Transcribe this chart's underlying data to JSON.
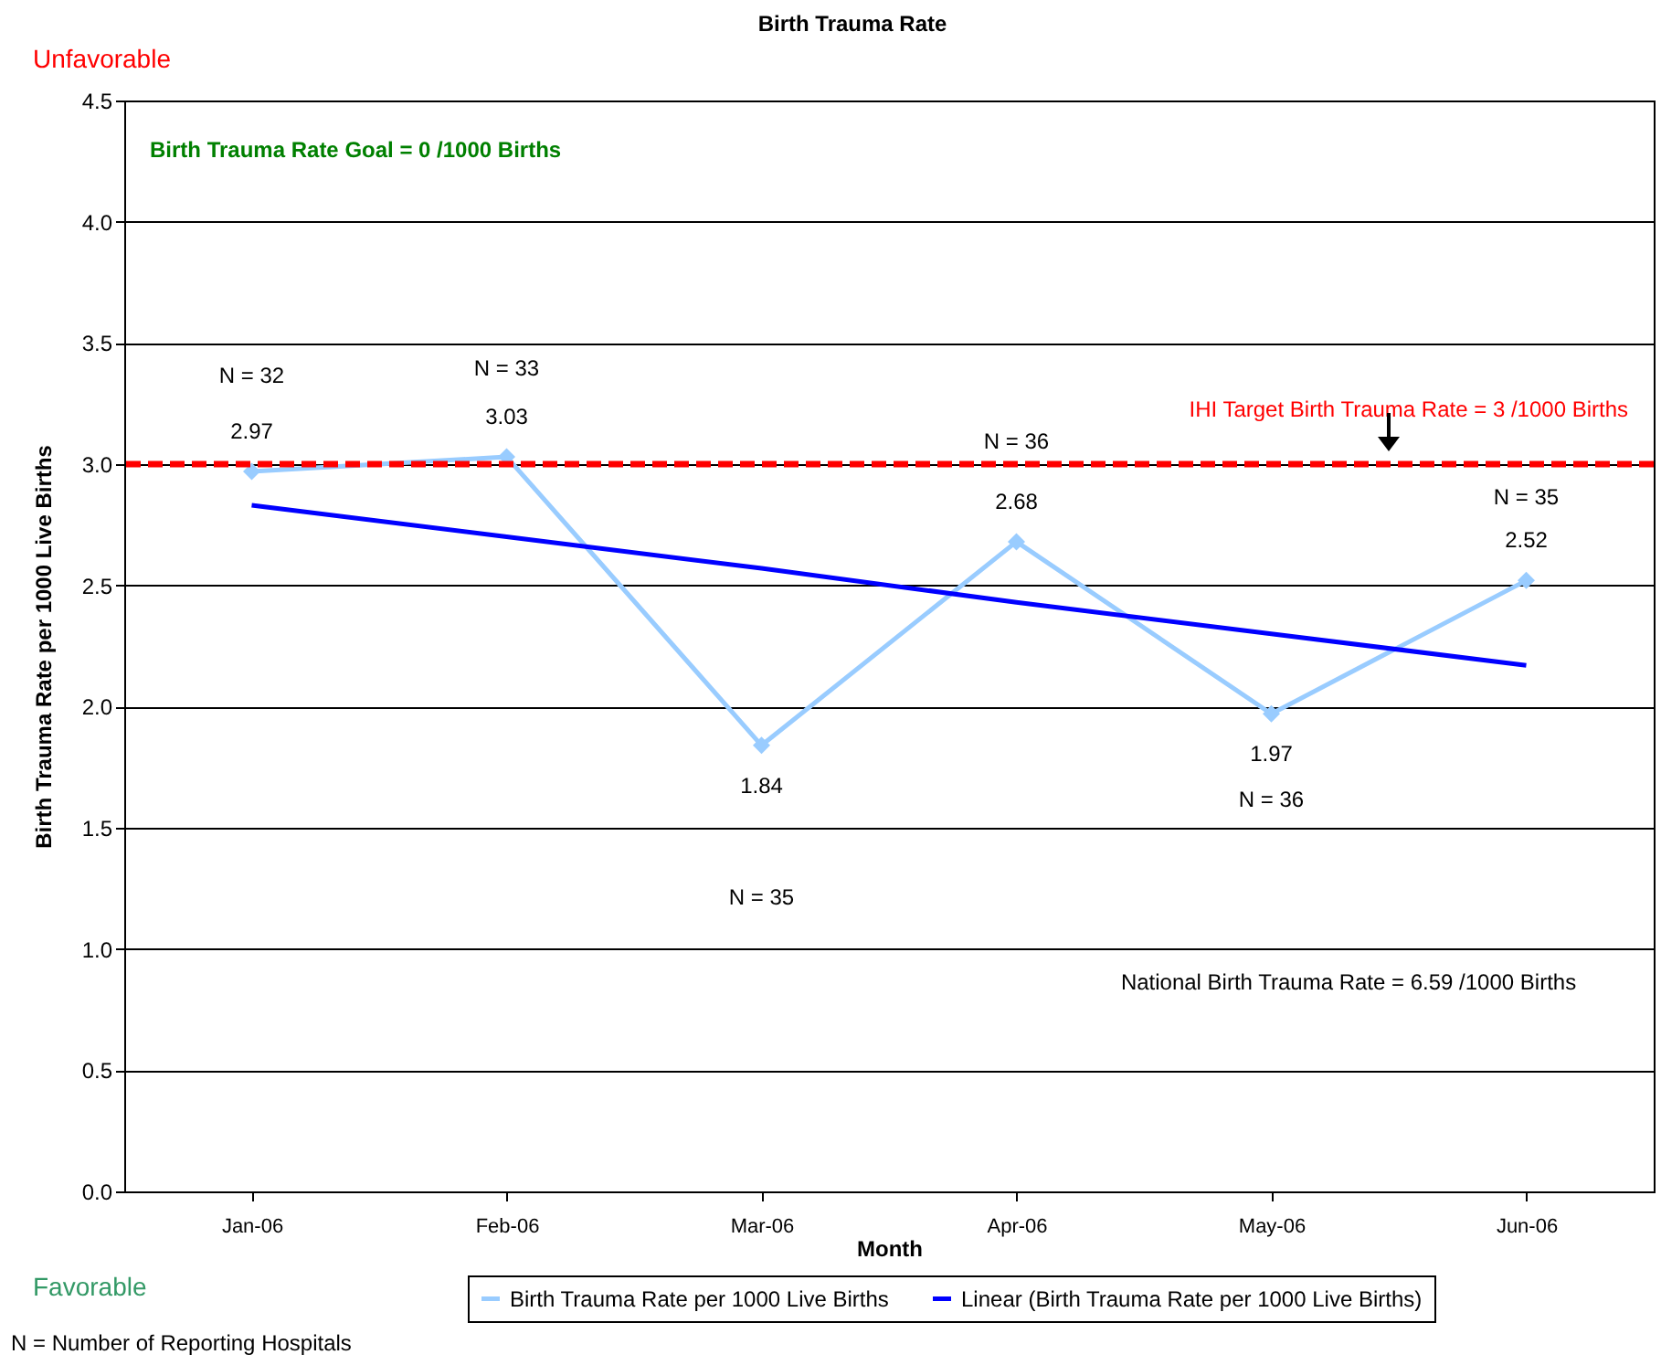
{
  "chart_data": {
    "type": "line",
    "title": "Birth Trauma Rate",
    "xlabel": "Month",
    "ylabel": "Birth Trauma Rate per 1000 Live Births",
    "categories": [
      "Jan-06",
      "Feb-06",
      "Mar-06",
      "Apr-06",
      "May-06",
      "Jun-06"
    ],
    "series": [
      {
        "name": "Birth Trauma Rate per 1000 Live Births",
        "color": "#99ccff",
        "values": [
          2.97,
          3.03,
          1.84,
          2.68,
          1.97,
          2.52
        ],
        "marker": "diamond",
        "value_labels": [
          "2.97",
          "3.03",
          "1.84",
          "2.68",
          "1.97",
          "2.52"
        ]
      },
      {
        "name": "Linear (Birth Trauma Rate per 1000 Live Births)",
        "color": "#0000ff",
        "values": [
          2.83,
          2.7,
          2.57,
          2.43,
          2.3,
          2.17
        ],
        "marker": "none"
      }
    ],
    "ylim": [
      0,
      4.5
    ],
    "yticks": [
      {
        "value": 0,
        "label": "0.0"
      },
      {
        "value": 0.5,
        "label": "0.5"
      },
      {
        "value": 1,
        "label": "1.0"
      },
      {
        "value": 1.5,
        "label": "1.5"
      },
      {
        "value": 2,
        "label": "2.0"
      },
      {
        "value": 2.5,
        "label": "2.5"
      },
      {
        "value": 3,
        "label": "3.0"
      },
      {
        "value": 3.5,
        "label": "3.5"
      },
      {
        "value": 4,
        "label": "4.0"
      },
      {
        "value": 4.5,
        "label": "4.5"
      }
    ],
    "grid": "y",
    "legend": "bottom",
    "ref_lines": [
      {
        "axis": "y",
        "value": 3,
        "label": "IHI Target Birth Trauma Rate = 3 /1000 Births",
        "color": "#ff0000",
        "line_style": "dashed"
      }
    ],
    "annotations": [
      "N = 32",
      "N = 33",
      "N = 35",
      "N = 36",
      "N = 36",
      "N = 35",
      "Unfavorable",
      "Favorable",
      "N = Number of Reporting Hospitals",
      "Birth Trauma Rate Goal = 0 /1000 Births",
      "National Birth Trauma Rate = 6.59 /1000 Births"
    ]
  }
}
